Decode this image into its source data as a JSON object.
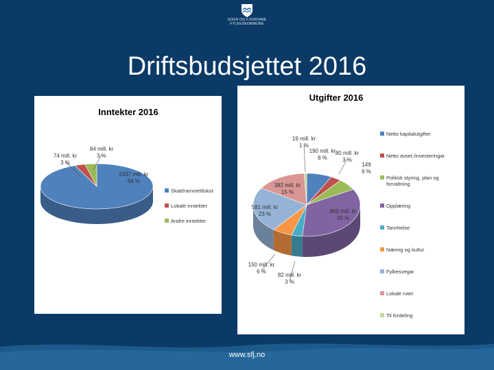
{
  "header": {
    "logo_line1": "SOGN OG FJORDANE",
    "logo_line2": "FYLKESKOMMUNE"
  },
  "slide": {
    "title": "Driftsbudsjettet 2016",
    "footer_url": "www.sfj.no"
  },
  "colors": {
    "background": "#0b3a66",
    "footer_band": "#1d5a8c"
  },
  "chart_data": [
    {
      "type": "pie",
      "title": "Inntekter 2016",
      "categories": [
        "Skatt/rammetilskot",
        "Lokale inntekter",
        "Andre inntekter"
      ],
      "values": [
        2337,
        74,
        84
      ],
      "data_labels": [
        {
          "value": "2337 mill. kr",
          "pct": "94 %"
        },
        {
          "value": "74 mill. kr",
          "pct": "3 %"
        },
        {
          "value": "84 mill. kr",
          "pct": "3 %"
        }
      ],
      "colors": [
        "#4f81bd",
        "#c0504d",
        "#9bbb59"
      ],
      "legend_position": "right"
    },
    {
      "type": "pie",
      "title": "Utgifter 2016",
      "categories": [
        "Netto kapitalutgifter",
        "Netto avset./investeringar",
        "Politisk styring, plan og forvaltning",
        "Opplæring",
        "Tannhelse",
        "Næring og kultur",
        "Fylkesvegar",
        "Lokale ruter",
        "Til fordeling"
      ],
      "values": [
        190,
        80,
        149,
        860,
        82,
        150,
        581,
        382,
        19
      ],
      "data_labels": [
        {
          "value": "190 mill. kr",
          "pct": "8 %"
        },
        {
          "value": "80 mill. kr",
          "pct": "3 %"
        },
        {
          "value": "149",
          "pct": "6 %"
        },
        {
          "value": "860 mill. kr",
          "pct": "35 %"
        },
        {
          "value": "82 mill. kr",
          "pct": "3 %"
        },
        {
          "value": "150 mill. kr",
          "pct": "6 %"
        },
        {
          "value": "581 mill. kr",
          "pct": "23 %"
        },
        {
          "value": "382 mill. kr",
          "pct": "15 %"
        },
        {
          "value": "19 mill. kr",
          "pct": "1 %"
        }
      ],
      "colors": [
        "#4f81bd",
        "#c0504d",
        "#9bbb59",
        "#8064a2",
        "#4bacc6",
        "#f79646",
        "#94b3d6",
        "#d99694",
        "#c3d69b"
      ],
      "legend_position": "right"
    }
  ]
}
